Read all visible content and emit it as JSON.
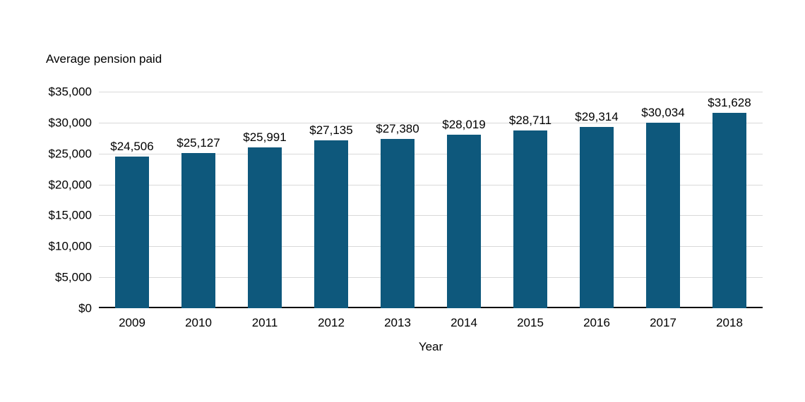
{
  "chart_data": {
    "type": "bar",
    "title": "Average pension paid",
    "xlabel": "Year",
    "ylabel": "",
    "categories": [
      "2009",
      "2010",
      "2011",
      "2012",
      "2013",
      "2014",
      "2015",
      "2016",
      "2017",
      "2018"
    ],
    "values": [
      24506,
      25127,
      25991,
      27135,
      27380,
      28019,
      28711,
      29314,
      30034,
      31628
    ],
    "value_labels": [
      "$24,506",
      "$25,127",
      "$25,991",
      "$27,135",
      "$27,380",
      "$28,019",
      "$28,711",
      "$29,314",
      "$30,034",
      "$31,628"
    ],
    "ylim": [
      0,
      35000
    ],
    "y_ticks": [
      0,
      5000,
      10000,
      15000,
      20000,
      25000,
      30000,
      35000
    ],
    "y_tick_labels": [
      "$0",
      "$5,000",
      "$10,000",
      "$15,000",
      "$20,000",
      "$25,000",
      "$30,000",
      "$35,000"
    ],
    "grid": true,
    "legend_position": "none",
    "bar_color": "#0e587c",
    "axis_color": "#000000",
    "grid_color": "#d9d9d9",
    "text_color": "#000000"
  }
}
